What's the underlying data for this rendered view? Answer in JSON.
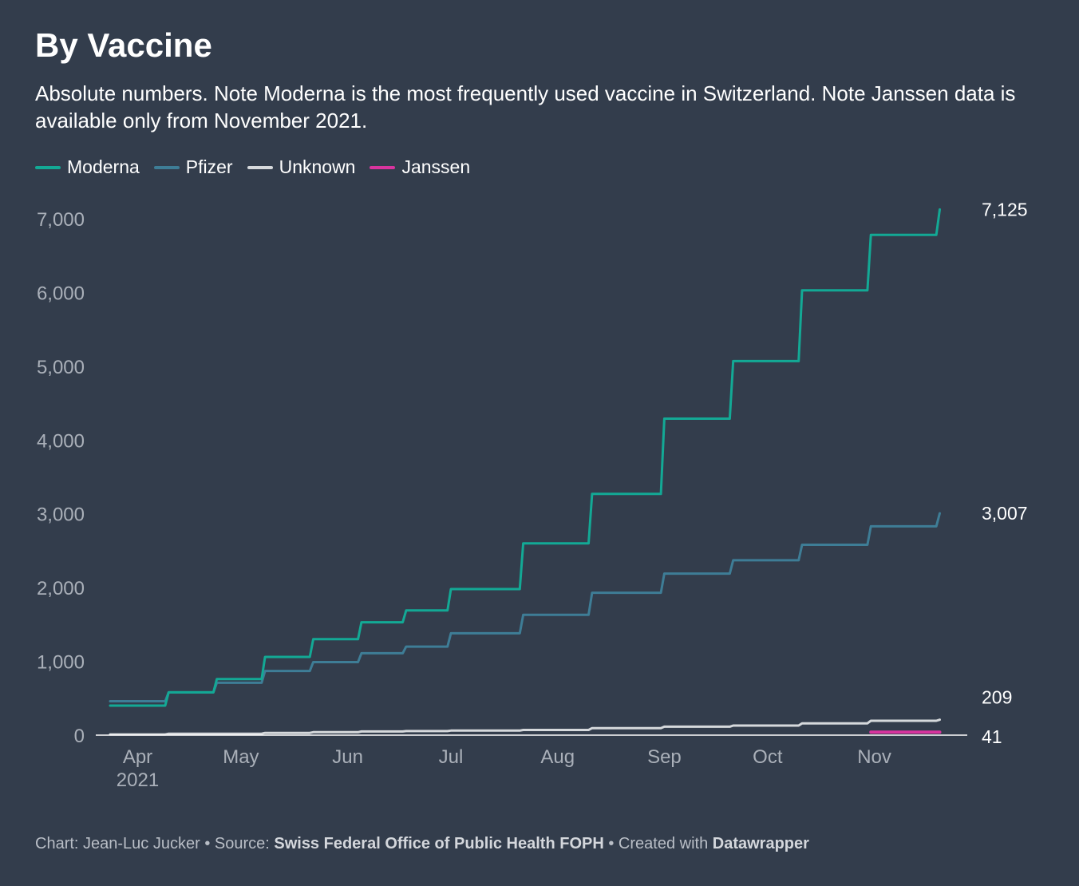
{
  "header": {
    "title": "By Vaccine",
    "subtitle": "Absolute numbers. Note Moderna is the most frequently used vaccine in Switzerland. Note Janssen data is available only from November 2021."
  },
  "footer": {
    "chart_prefix": "Chart: Jean-Luc Jucker • Source: ",
    "source": "Swiss Federal Office of Public Health FOPH",
    "created_prefix": " • Created with ",
    "tool": "Datawrapper"
  },
  "colors": {
    "background": "#333d4c",
    "Moderna": "#13a995",
    "Pfizer": "#3e7d96",
    "Unknown": "#d6d9dc",
    "Janssen": "#d8349e",
    "axis_text": "#aab0b9",
    "zero_line": "#ffffff"
  },
  "chart_data": {
    "type": "line",
    "title": "By Vaccine",
    "y_ticks": [
      0,
      1000,
      2000,
      3000,
      4000,
      5000,
      6000,
      7000
    ],
    "y_tick_labels": [
      "0",
      "1,000",
      "2,000",
      "3,000",
      "4,000",
      "5,000",
      "6,000",
      "7,000"
    ],
    "ylim": [
      0,
      7400
    ],
    "x_ticks": [
      {
        "date": "2021-04-01",
        "label": "Apr",
        "sublabel": "2021"
      },
      {
        "date": "2021-05-01",
        "label": "May"
      },
      {
        "date": "2021-06-01",
        "label": "Jun"
      },
      {
        "date": "2021-07-01",
        "label": "Jul"
      },
      {
        "date": "2021-08-01",
        "label": "Aug"
      },
      {
        "date": "2021-09-01",
        "label": "Sep"
      },
      {
        "date": "2021-10-01",
        "label": "Oct"
      },
      {
        "date": "2021-11-01",
        "label": "Nov"
      }
    ],
    "xlim": [
      "2021-03-24",
      "2021-11-28"
    ],
    "grid": false,
    "legend": "top-left",
    "series": [
      {
        "name": "Moderna",
        "end_label": "7,125",
        "points": [
          [
            "2021-03-24",
            400
          ],
          [
            "2021-04-09",
            400
          ],
          [
            "2021-04-10",
            580
          ],
          [
            "2021-04-23",
            580
          ],
          [
            "2021-04-24",
            760
          ],
          [
            "2021-05-07",
            760
          ],
          [
            "2021-05-08",
            1060
          ],
          [
            "2021-05-21",
            1060
          ],
          [
            "2021-05-22",
            1300
          ],
          [
            "2021-06-04",
            1300
          ],
          [
            "2021-06-05",
            1530
          ],
          [
            "2021-06-17",
            1530
          ],
          [
            "2021-06-18",
            1690
          ],
          [
            "2021-06-30",
            1690
          ],
          [
            "2021-07-01",
            1980
          ],
          [
            "2021-07-21",
            1980
          ],
          [
            "2021-07-22",
            2600
          ],
          [
            "2021-08-10",
            2600
          ],
          [
            "2021-08-11",
            3270
          ],
          [
            "2021-08-31",
            3270
          ],
          [
            "2021-09-01",
            4290
          ],
          [
            "2021-09-20",
            4290
          ],
          [
            "2021-09-21",
            5070
          ],
          [
            "2021-10-10",
            5070
          ],
          [
            "2021-10-11",
            6030
          ],
          [
            "2021-10-30",
            6030
          ],
          [
            "2021-10-31",
            6780
          ],
          [
            "2021-11-19",
            6780
          ],
          [
            "2021-11-20",
            7125
          ]
        ]
      },
      {
        "name": "Pfizer",
        "end_label": "3,007",
        "points": [
          [
            "2021-03-24",
            460
          ],
          [
            "2021-04-09",
            460
          ],
          [
            "2021-04-10",
            580
          ],
          [
            "2021-04-23",
            580
          ],
          [
            "2021-04-24",
            710
          ],
          [
            "2021-05-07",
            710
          ],
          [
            "2021-05-08",
            870
          ],
          [
            "2021-05-21",
            870
          ],
          [
            "2021-05-22",
            990
          ],
          [
            "2021-06-04",
            990
          ],
          [
            "2021-06-05",
            1110
          ],
          [
            "2021-06-17",
            1110
          ],
          [
            "2021-06-18",
            1200
          ],
          [
            "2021-06-30",
            1200
          ],
          [
            "2021-07-01",
            1380
          ],
          [
            "2021-07-21",
            1380
          ],
          [
            "2021-07-22",
            1630
          ],
          [
            "2021-08-10",
            1630
          ],
          [
            "2021-08-11",
            1930
          ],
          [
            "2021-08-31",
            1930
          ],
          [
            "2021-09-01",
            2190
          ],
          [
            "2021-09-20",
            2190
          ],
          [
            "2021-09-21",
            2370
          ],
          [
            "2021-10-10",
            2370
          ],
          [
            "2021-10-11",
            2580
          ],
          [
            "2021-10-30",
            2580
          ],
          [
            "2021-10-31",
            2830
          ],
          [
            "2021-11-19",
            2830
          ],
          [
            "2021-11-20",
            3007
          ]
        ]
      },
      {
        "name": "Unknown",
        "end_label": "209",
        "points": [
          [
            "2021-03-24",
            10
          ],
          [
            "2021-04-09",
            10
          ],
          [
            "2021-04-10",
            20
          ],
          [
            "2021-05-07",
            20
          ],
          [
            "2021-05-08",
            30
          ],
          [
            "2021-05-21",
            30
          ],
          [
            "2021-05-22",
            40
          ],
          [
            "2021-06-04",
            40
          ],
          [
            "2021-06-05",
            50
          ],
          [
            "2021-06-17",
            50
          ],
          [
            "2021-06-18",
            55
          ],
          [
            "2021-06-30",
            55
          ],
          [
            "2021-07-01",
            62
          ],
          [
            "2021-07-21",
            62
          ],
          [
            "2021-07-22",
            70
          ],
          [
            "2021-08-10",
            70
          ],
          [
            "2021-08-11",
            95
          ],
          [
            "2021-08-31",
            95
          ],
          [
            "2021-09-01",
            115
          ],
          [
            "2021-09-20",
            115
          ],
          [
            "2021-09-21",
            130
          ],
          [
            "2021-10-10",
            130
          ],
          [
            "2021-10-11",
            160
          ],
          [
            "2021-10-30",
            160
          ],
          [
            "2021-10-31",
            195
          ],
          [
            "2021-11-19",
            195
          ],
          [
            "2021-11-20",
            209
          ]
        ]
      },
      {
        "name": "Janssen",
        "end_label": "41",
        "points": [
          [
            "2021-10-31",
            41
          ],
          [
            "2021-11-20",
            41
          ]
        ]
      }
    ]
  }
}
